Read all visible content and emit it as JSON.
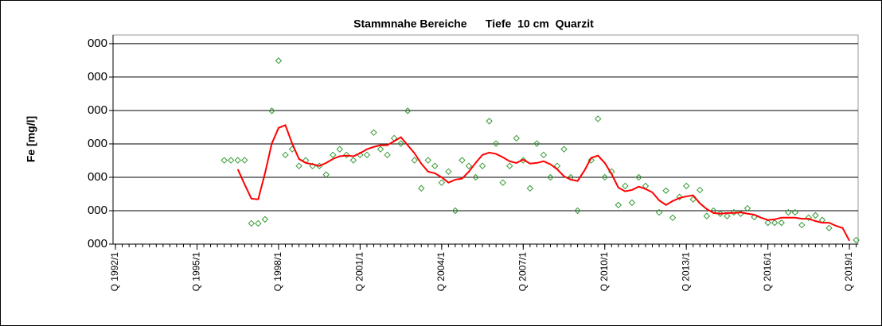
{
  "chart_data": {
    "type": "line",
    "title": "Stammnahe Bereiche      Tiefe  10 cm  Quarzit",
    "y_label": "Fe [mg/l]",
    "x": [
      1996,
      1996.25,
      1996.5,
      1996.75,
      1997,
      1997.25,
      1997.5,
      1997.75,
      1998,
      1998.25,
      1998.5,
      1998.75,
      1999,
      1999.25,
      1999.5,
      1999.75,
      2000,
      2000.25,
      2000.5,
      2000.75,
      2001,
      2001.25,
      2001.5,
      2001.75,
      2002,
      2002.25,
      2002.5,
      2002.75,
      2003,
      2003.25,
      2003.5,
      2003.75,
      2004,
      2004.25,
      2004.5,
      2004.75,
      2005,
      2005.25,
      2005.5,
      2005.75,
      2006,
      2006.25,
      2006.5,
      2006.75,
      2007,
      2007.25,
      2007.5,
      2007.75,
      2008,
      2008.25,
      2008.5,
      2008.75,
      2009,
      2009.25,
      2009.5,
      2009.75,
      2010,
      2010.25,
      2010.5,
      2010.75,
      2011,
      2011.25,
      2011.5,
      2011.75,
      2012,
      2012.25,
      2012.5,
      2012.75,
      2013,
      2013.25,
      2013.5,
      2013.75,
      2014,
      2014.25,
      2014.5,
      2014.75,
      2015,
      2015.25,
      2015.5,
      2015.75,
      2016,
      2016.25,
      2016.5,
      2016.75,
      2017,
      2017.25,
      2017.5,
      2017.75,
      2018,
      2018.25,
      2018.5,
      2018.75,
      2019,
      2019.25
    ],
    "series": [
      {
        "type": "scatter",
        "color": "#339933",
        "values": [
          2.51,
          2.51,
          2.51,
          2.51,
          0.62,
          0.62,
          0.74,
          3.99,
          5.49,
          2.67,
          2.84,
          2.34,
          2.51,
          2.34,
          2.34,
          2.08,
          2.67,
          2.84,
          2.67,
          2.51,
          2.67,
          2.67,
          3.34,
          2.84,
          2.67,
          3.17,
          3.01,
          3.99,
          2.51,
          1.67,
          2.51,
          2.34,
          1.84,
          2.17,
          1.0,
          2.51,
          2.34,
          2.0,
          2.34,
          3.68,
          3.01,
          1.84,
          2.34,
          3.17,
          2.51,
          1.67,
          3.01,
          2.67,
          2.0,
          2.34,
          2.84,
          2.0,
          1.0,
          null,
          2.51,
          3.75,
          2.0,
          2.17,
          1.17,
          1.74,
          1.24,
          2.0,
          1.74,
          null,
          0.95,
          1.6,
          0.79,
          1.41,
          1.74,
          1.34,
          1.62,
          0.84,
          1.0,
          0.91,
          0.84,
          0.95,
          0.91,
          1.07,
          0.81,
          null,
          0.64,
          0.64,
          0.64,
          0.95,
          0.95,
          0.57,
          0.79,
          0.86,
          0.72,
          0.48,
          null,
          null,
          null,
          0.12
        ]
      },
      {
        "type": "line",
        "color": "#ff0000",
        "values": [
          null,
          null,
          2.24,
          1.79,
          1.36,
          1.34,
          2.12,
          3.01,
          3.48,
          3.56,
          3.01,
          2.55,
          2.43,
          2.39,
          2.34,
          2.43,
          2.55,
          2.63,
          2.65,
          2.63,
          2.72,
          2.84,
          2.91,
          2.96,
          2.96,
          3.08,
          3.2,
          2.96,
          2.72,
          2.41,
          2.17,
          2.12,
          2.0,
          1.84,
          1.93,
          1.96,
          2.17,
          2.43,
          2.67,
          2.74,
          2.7,
          2.6,
          2.48,
          2.43,
          2.53,
          2.41,
          2.43,
          2.48,
          2.39,
          2.24,
          2.03,
          1.93,
          1.89,
          2.2,
          2.58,
          2.65,
          2.43,
          2.1,
          1.69,
          1.58,
          1.62,
          1.72,
          1.65,
          1.55,
          1.31,
          1.17,
          1.29,
          1.38,
          1.43,
          1.46,
          1.22,
          1.05,
          0.93,
          0.91,
          0.93,
          0.93,
          0.95,
          0.91,
          0.88,
          0.79,
          0.72,
          0.74,
          0.79,
          0.79,
          0.79,
          0.76,
          0.76,
          0.69,
          0.64,
          0.64,
          0.55,
          0.48,
          0.1,
          null
        ]
      }
    ],
    "xlim": [
      1991.91,
      2019.32
    ],
    "xticks": [
      {
        "value": 1992,
        "label": "Q 1992/1"
      },
      {
        "value": 1995,
        "label": "Q 1995/1"
      },
      {
        "value": 1998,
        "label": "Q 1998/1"
      },
      {
        "value": 2001,
        "label": "Q 2001/1"
      },
      {
        "value": 2004,
        "label": "Q 2004/1"
      },
      {
        "value": 2007,
        "label": "Q 2007/1"
      },
      {
        "value": 2010,
        "label": "Q 2010/1"
      },
      {
        "value": 2013,
        "label": "Q 2013/1"
      },
      {
        "value": 2016,
        "label": "Q 2016/1"
      },
      {
        "value": 2019,
        "label": "Q 2019/1"
      }
    ],
    "ylim": [
      0,
      6.26
    ],
    "yticks": [
      {
        "value": 0,
        "label": "000"
      },
      {
        "value": 1,
        "label": "000"
      },
      {
        "value": 2,
        "label": "000"
      },
      {
        "value": 3,
        "label": "000"
      },
      {
        "value": 4,
        "label": "000"
      },
      {
        "value": 5,
        "label": "000"
      },
      {
        "value": 6,
        "label": "000"
      }
    ],
    "grid": true
  }
}
